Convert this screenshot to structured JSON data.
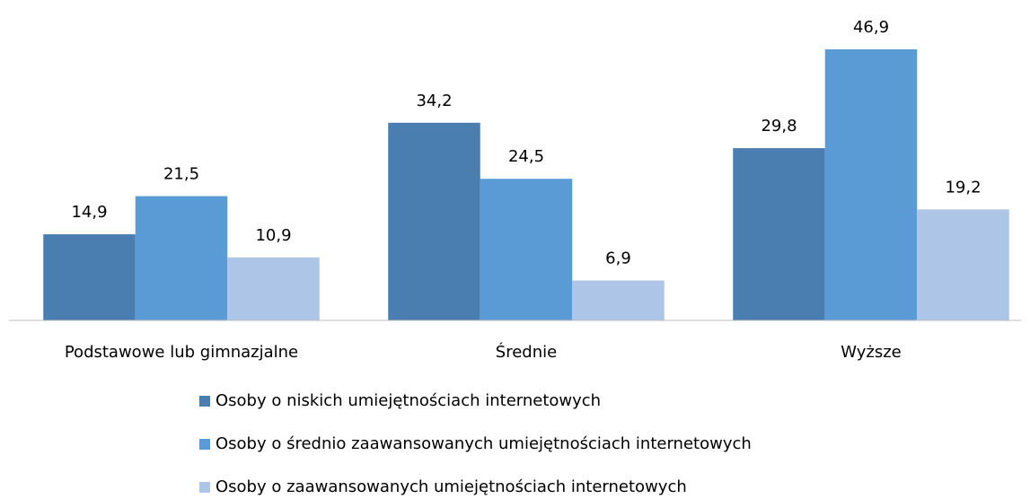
{
  "chart_data": {
    "type": "bar",
    "categories": [
      "Podstawowe lub gimnazjalne",
      "Średnie",
      "Wyższe"
    ],
    "series": [
      {
        "name": "Osoby o niskich umiejętnościach internetowych",
        "color": "#4a7eb0",
        "values": [
          14.9,
          34.2,
          29.8
        ],
        "value_labels": [
          "14,9",
          "34,2",
          "29,8"
        ]
      },
      {
        "name": "Osoby o średnio zaawansowanych umiejętnościach internetowych",
        "color": "#5b9bd5",
        "values": [
          21.5,
          24.5,
          46.9
        ],
        "value_labels": [
          "21,5",
          "24,5",
          "46,9"
        ]
      },
      {
        "name": "Osoby o zaawansowanych umiejętnościach internetowych",
        "color": "#adc5e7",
        "values": [
          10.9,
          6.9,
          19.2
        ],
        "value_labels": [
          "10,9",
          "6,9",
          "19,2"
        ]
      }
    ],
    "ylim": [
      0,
      50
    ],
    "legend": "bottom"
  }
}
